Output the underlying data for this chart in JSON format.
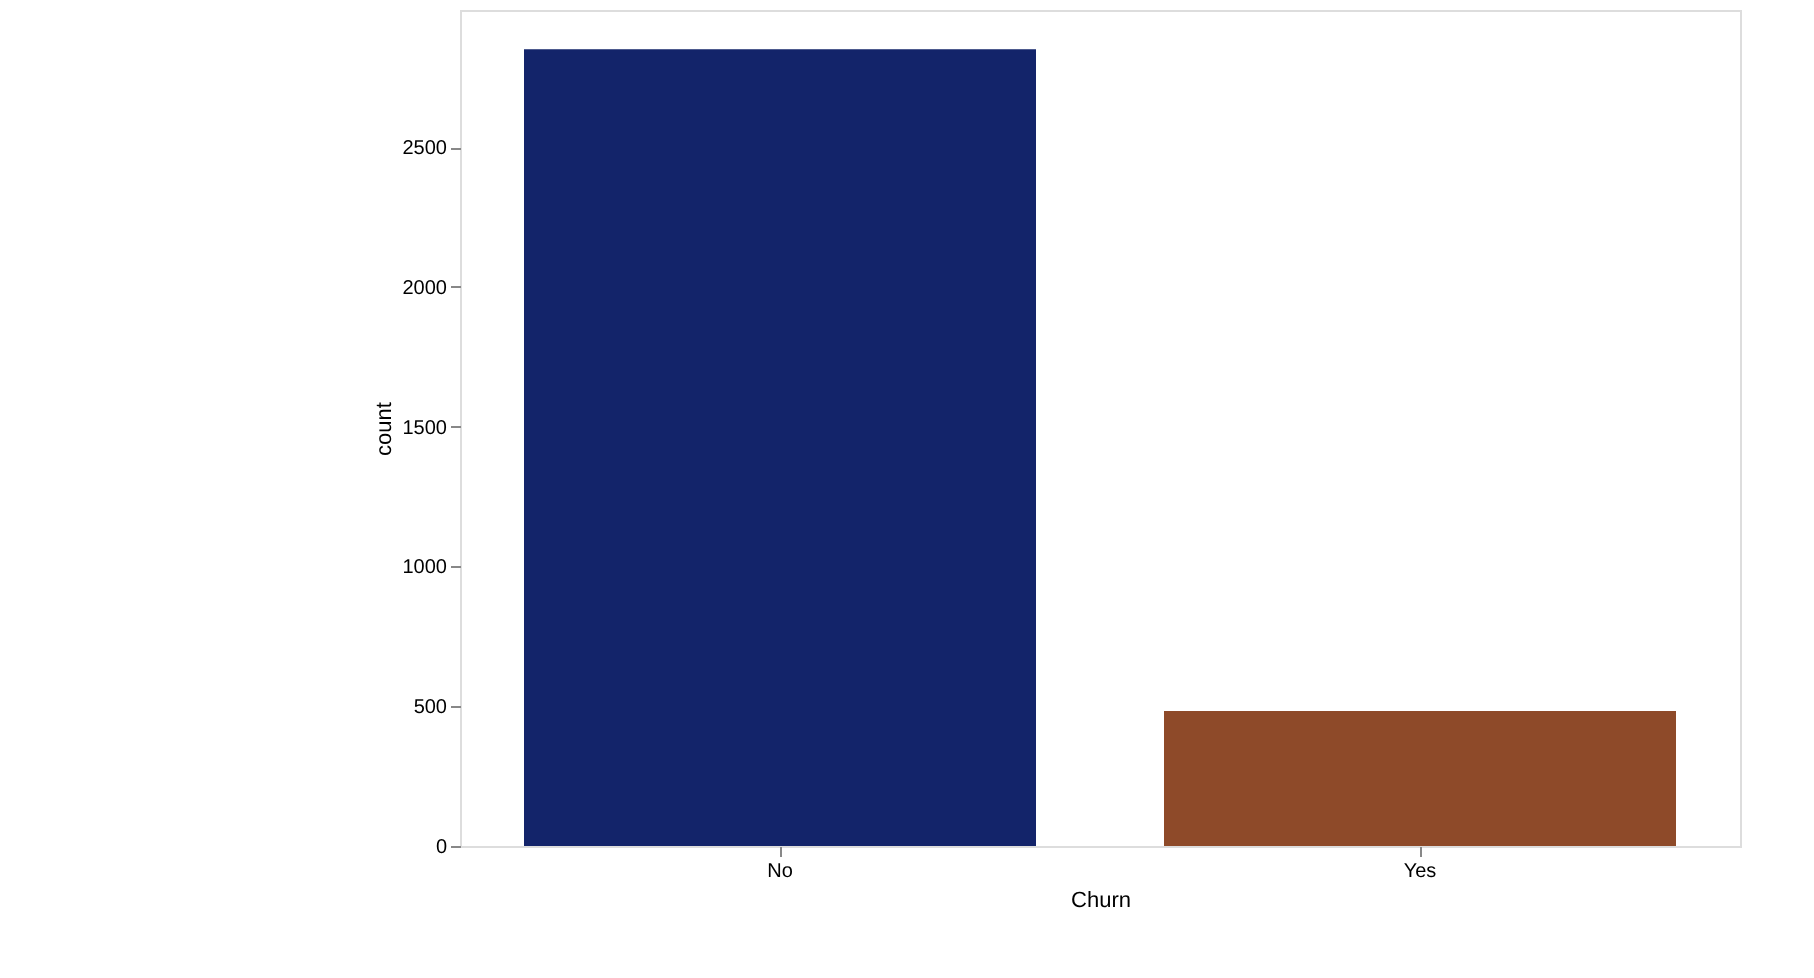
{
  "chart_data": {
    "type": "bar",
    "xlabel": "Churn",
    "ylabel": "count",
    "categories": [
      "No",
      "Yes"
    ],
    "colors": [
      "#13246a",
      "#8e4a29"
    ],
    "values": [
      2850,
      483
    ],
    "ylim": [
      0,
      2990
    ],
    "yticks": [
      0,
      500,
      1000,
      1500,
      2000,
      2500
    ],
    "grid": false,
    "legend": false
  }
}
